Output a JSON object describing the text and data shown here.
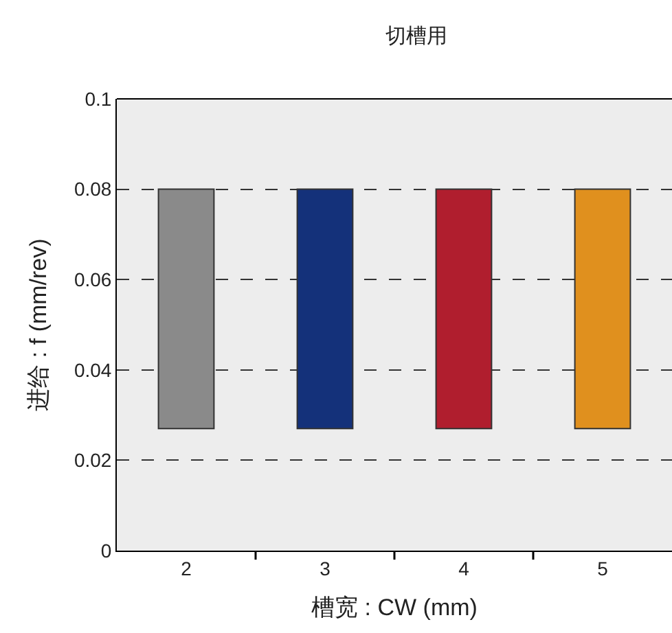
{
  "chart_data": {
    "type": "bar",
    "title": "切槽用",
    "xlabel": "槽宽 : CW (mm)",
    "ylabel": "进给 : f (mm/rev)",
    "categories": [
      "2",
      "3",
      "4",
      "5"
    ],
    "values": [
      0.053,
      0.053,
      0.053,
      0.053
    ],
    "base": [
      0.027,
      0.027,
      0.027,
      0.027
    ],
    "colors": [
      "#8a8a8a",
      "#14317a",
      "#b01e2e",
      "#e0901e"
    ],
    "ylim": [
      0,
      0.1
    ],
    "yticks": [
      0,
      0.02,
      0.04,
      0.06,
      0.08,
      0.1
    ],
    "grid": "y"
  }
}
